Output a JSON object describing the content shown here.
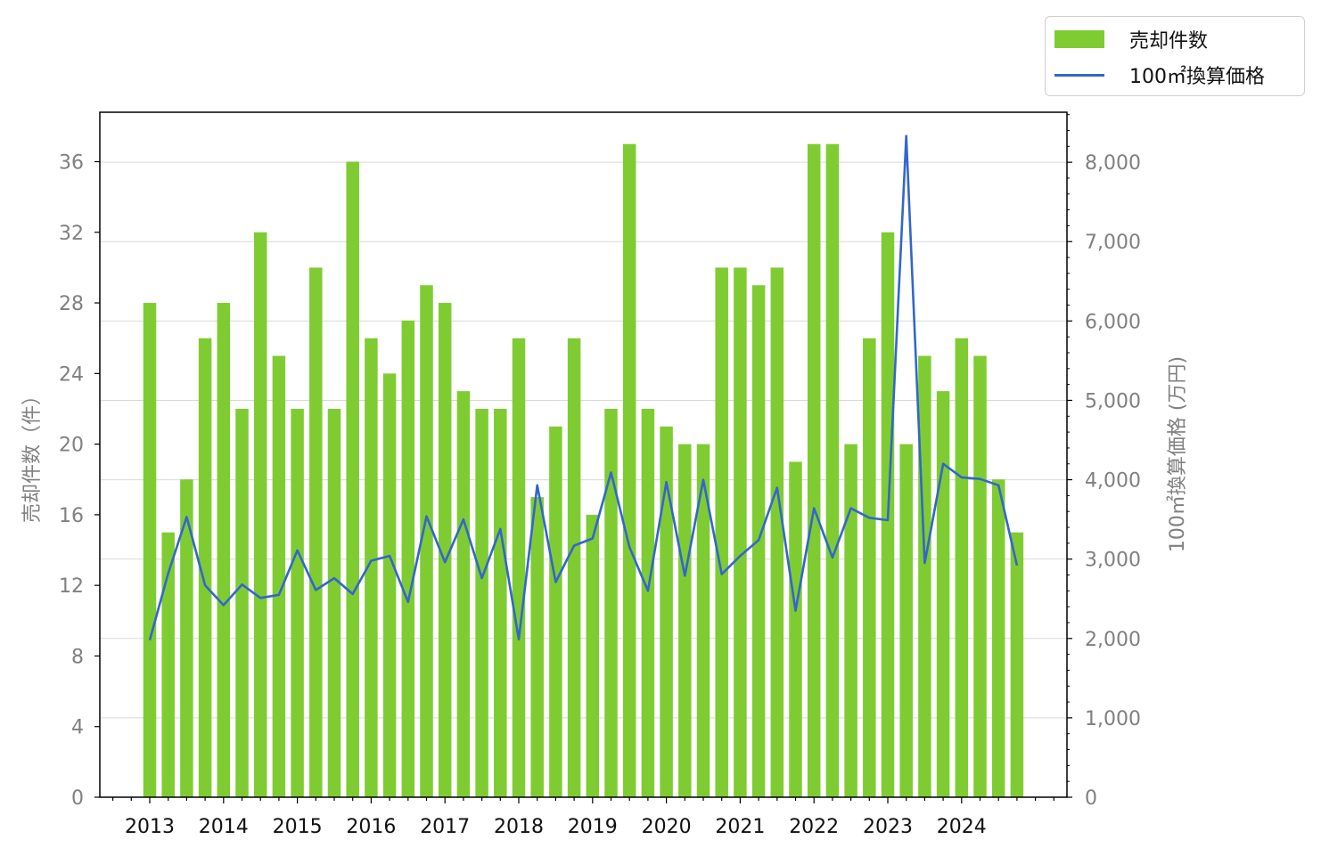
{
  "colors": {
    "bar": "#7fcc32",
    "line": "#3366cc",
    "grid": "#d9d9d9",
    "axis_text": "#808080",
    "x_text": "#111111"
  },
  "legend": {
    "position": "top-right",
    "items": [
      {
        "label": "売却件数",
        "kind": "bar"
      },
      {
        "label": "100㎡換算価格",
        "kind": "line"
      }
    ]
  },
  "chart_data": {
    "type": "bar+line",
    "grid": "horizontal",
    "ylabel_left": "売却件数（件）",
    "ylabel_right": "100㎡換算価格 (万円)",
    "y_left_ticks": [
      "0",
      "4",
      "8",
      "12",
      "16",
      "20",
      "24",
      "28",
      "32",
      "36"
    ],
    "y_left_range": [
      0,
      38.8
    ],
    "y_right_ticks": [
      "0",
      "1,000",
      "2,000",
      "3,000",
      "4,000",
      "5,000",
      "6,000",
      "7,000",
      "8,000"
    ],
    "y_right_range": [
      0,
      8630
    ],
    "x_tick_labels": [
      "2013",
      "2014",
      "2015",
      "2016",
      "2017",
      "2018",
      "2019",
      "2020",
      "2021",
      "2022",
      "2023",
      "2024"
    ],
    "periods": [
      "2013Q1",
      "2013Q2",
      "2013Q3",
      "2013Q4",
      "2014Q1",
      "2014Q2",
      "2014Q3",
      "2014Q4",
      "2015Q1",
      "2015Q2",
      "2015Q3",
      "2015Q4",
      "2016Q1",
      "2016Q2",
      "2016Q3",
      "2016Q4",
      "2017Q1",
      "2017Q2",
      "2017Q3",
      "2017Q4",
      "2018Q1",
      "2018Q2",
      "2018Q3",
      "2018Q4",
      "2019Q1",
      "2019Q2",
      "2019Q3",
      "2019Q4",
      "2020Q1",
      "2020Q2",
      "2020Q3",
      "2020Q4",
      "2021Q1",
      "2021Q2",
      "2021Q3",
      "2021Q4",
      "2022Q1",
      "2022Q2",
      "2022Q3",
      "2022Q4",
      "2023Q1",
      "2023Q2",
      "2023Q3",
      "2023Q4",
      "2024Q1",
      "2024Q2",
      "2024Q3",
      "2024Q4"
    ],
    "series": [
      {
        "name": "売却件数",
        "type": "bar",
        "axis": "left",
        "values": [
          28,
          15,
          18,
          26,
          28,
          22,
          32,
          25,
          22,
          30,
          22,
          36,
          26,
          24,
          27,
          29,
          28,
          23,
          22,
          22,
          26,
          17,
          21,
          26,
          16,
          22,
          37,
          22,
          21,
          20,
          20,
          30,
          30,
          29,
          30,
          19,
          37,
          37,
          20,
          26,
          32,
          20,
          25,
          23,
          26,
          25,
          18,
          15
        ]
      },
      {
        "name": "100㎡換算価格",
        "type": "line",
        "axis": "right",
        "values": [
          1980,
          2820,
          3530,
          2670,
          2420,
          2680,
          2510,
          2550,
          3110,
          2610,
          2760,
          2560,
          2980,
          3040,
          2460,
          3540,
          2960,
          3500,
          2760,
          3380,
          1990,
          3930,
          2710,
          3170,
          3260,
          4090,
          3150,
          2600,
          3970,
          2790,
          4000,
          2810,
          3040,
          3240,
          3900,
          2350,
          3640,
          3020,
          3640,
          3520,
          3490,
          8330,
          2950,
          4200,
          4030,
          4010,
          3930,
          2920
        ]
      }
    ]
  }
}
